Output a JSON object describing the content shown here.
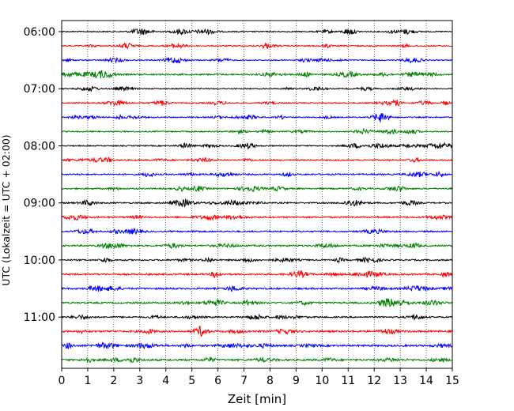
{
  "chart_data": {
    "type": "line",
    "xlabel": "Zeit  [min]",
    "ylabel": "UTC (Lokalzeit = UTC + 02:00)",
    "xlim": [
      0,
      15
    ],
    "xticks": [
      0,
      1,
      2,
      3,
      4,
      5,
      6,
      7,
      8,
      9,
      10,
      11,
      12,
      13,
      14,
      15
    ],
    "yticks": [
      "06:00",
      "07:00",
      "08:00",
      "09:00",
      "10:00",
      "11:00"
    ],
    "grid": "vertical dotted",
    "colors": [
      "#000000",
      "#ff0000",
      "#0000ff",
      "#008000"
    ],
    "traces": [
      {
        "start": "06:00",
        "color": "#000000",
        "amp": 1.2
      },
      {
        "start": "06:15",
        "color": "#ff0000",
        "amp": 1.3
      },
      {
        "start": "06:30",
        "color": "#0000ff",
        "amp": 1.2
      },
      {
        "start": "06:45",
        "color": "#008000",
        "amp": 1.6
      },
      {
        "start": "07:00",
        "color": "#000000",
        "amp": 1.2
      },
      {
        "start": "07:15",
        "color": "#ff0000",
        "amp": 1.2
      },
      {
        "start": "07:30",
        "color": "#0000ff",
        "amp": 1.3
      },
      {
        "start": "07:45",
        "color": "#008000",
        "amp": 1.3
      },
      {
        "start": "08:00",
        "color": "#000000",
        "amp": 1.2
      },
      {
        "start": "08:15",
        "color": "#ff0000",
        "amp": 1.5
      },
      {
        "start": "08:30",
        "color": "#0000ff",
        "amp": 1.6
      },
      {
        "start": "08:45",
        "color": "#008000",
        "amp": 1.6
      },
      {
        "start": "09:00",
        "color": "#000000",
        "amp": 1.5
      },
      {
        "start": "09:15",
        "color": "#ff0000",
        "amp": 1.7
      },
      {
        "start": "09:30",
        "color": "#0000ff",
        "amp": 1.6
      },
      {
        "start": "09:45",
        "color": "#008000",
        "amp": 1.8
      },
      {
        "start": "10:00",
        "color": "#000000",
        "amp": 1.6
      },
      {
        "start": "10:15",
        "color": "#ff0000",
        "amp": 1.8
      },
      {
        "start": "10:30",
        "color": "#0000ff",
        "amp": 1.9
      },
      {
        "start": "10:45",
        "color": "#008000",
        "amp": 1.8
      },
      {
        "start": "11:00",
        "color": "#000000",
        "amp": 1.7
      },
      {
        "start": "11:15",
        "color": "#ff0000",
        "amp": 2.0
      },
      {
        "start": "11:30",
        "color": "#0000ff",
        "amp": 2.0
      },
      {
        "start": "11:45",
        "color": "#008000",
        "amp": 2.0
      }
    ]
  }
}
